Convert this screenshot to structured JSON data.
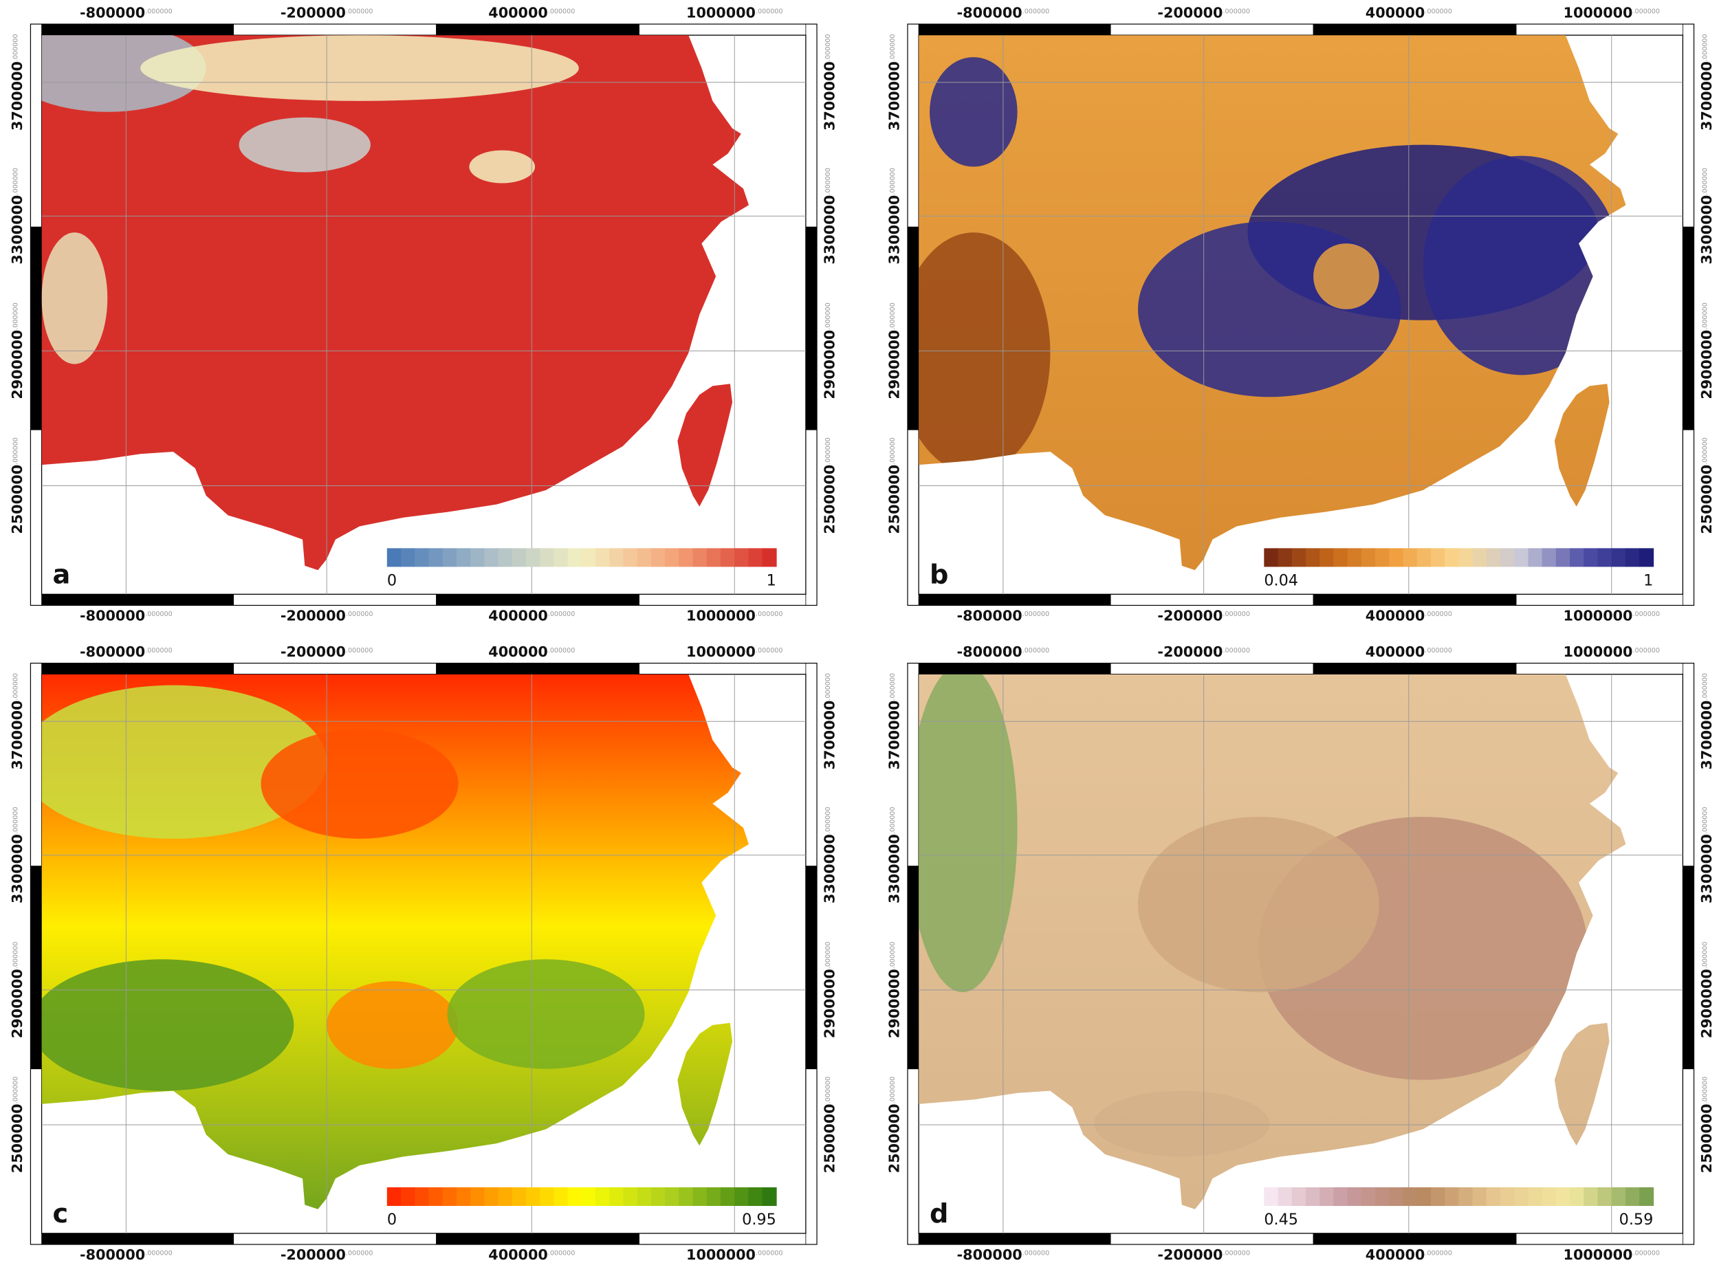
{
  "x_ticks": [
    -800000,
    -200000,
    400000,
    1000000
  ],
  "y_ticks": [
    3700000,
    3300000,
    2900000,
    2500000
  ],
  "tick_decimals": ".000000",
  "panels": [
    {
      "letter": "a",
      "legend": {
        "min": 0,
        "max": 1,
        "colors": [
          "#4a7ab8",
          "#a9bcc8",
          "#f3f0c0",
          "#f4a377",
          "#d7302b"
        ]
      }
    },
    {
      "letter": "b",
      "legend": {
        "min": 0.04,
        "max": 1,
        "colors": [
          "#7a2a12",
          "#c86a1a",
          "#f0a040",
          "#fad890",
          "#c8c8d8",
          "#5050a8",
          "#1e1e7a"
        ]
      }
    },
    {
      "letter": "c",
      "legend": {
        "min": 0,
        "max": 0.95,
        "colors": [
          "#ff2a00",
          "#ff9a00",
          "#ffff00",
          "#a8cc20",
          "#2e7a10"
        ]
      }
    },
    {
      "letter": "d",
      "legend": {
        "min": 0.45,
        "max": 0.59,
        "colors": [
          "#f6e6f0",
          "#c89aa0",
          "#b88860",
          "#e8c890",
          "#f2e8a0",
          "#7aa050"
        ]
      }
    }
  ]
}
